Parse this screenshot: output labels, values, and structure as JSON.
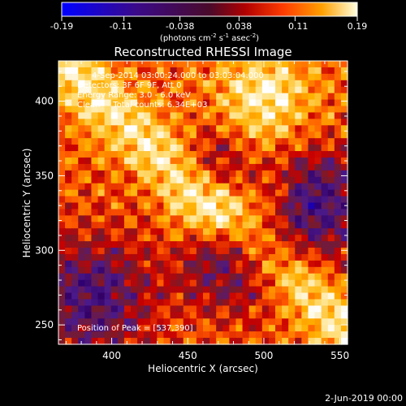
{
  "figure": {
    "title": "Reconstructed RHESSI Image",
    "footer_date": "2-Jun-2019 00:00"
  },
  "colorbar": {
    "ticks": [
      "-0.19",
      "-0.11",
      "-0.038",
      "0.038",
      "0.11",
      "0.19"
    ],
    "units": "(photons cm",
    "units_exp1": "-2",
    "units_mid": " s",
    "units_exp2": "-1",
    "units_end": " asec",
    "units_exp3": "-2",
    "units_close": ")"
  },
  "annotations": {
    "line1": "4-Sep-2014 03:00:24.000 to 03:03:04.000",
    "line2": "Detectors: 3F 6F 9F, Att 0",
    "line3": "Energy Range: 3.0 - 6.0 keV",
    "line4": "Clean     Total counts: 6.34E+03",
    "peak": "Position of Peak = [537,390]"
  },
  "chart_data": {
    "type": "heatmap",
    "title": "Reconstructed RHESSI Image",
    "xlabel": "Heliocentric X (arcsec)",
    "ylabel": "Heliocentric Y (arcsec)",
    "xlim": [
      365,
      555
    ],
    "ylim": [
      237,
      427
    ],
    "x_ticks": [
      400,
      450,
      500,
      550
    ],
    "y_ticks": [
      250,
      300,
      350,
      400
    ],
    "colorbar_range": [
      -0.19,
      0.19
    ],
    "colorbar_ticks": [
      -0.19,
      -0.11,
      -0.038,
      0.038,
      0.11,
      0.19
    ],
    "peak_position": [
      537,
      390
    ],
    "colormap": [
      "#0000ff",
      "#330066",
      "#4b1a8a",
      "#7a1a2a",
      "#c80000",
      "#ff5a00",
      "#ffb000",
      "#ffe080",
      "#ffffff"
    ]
  }
}
